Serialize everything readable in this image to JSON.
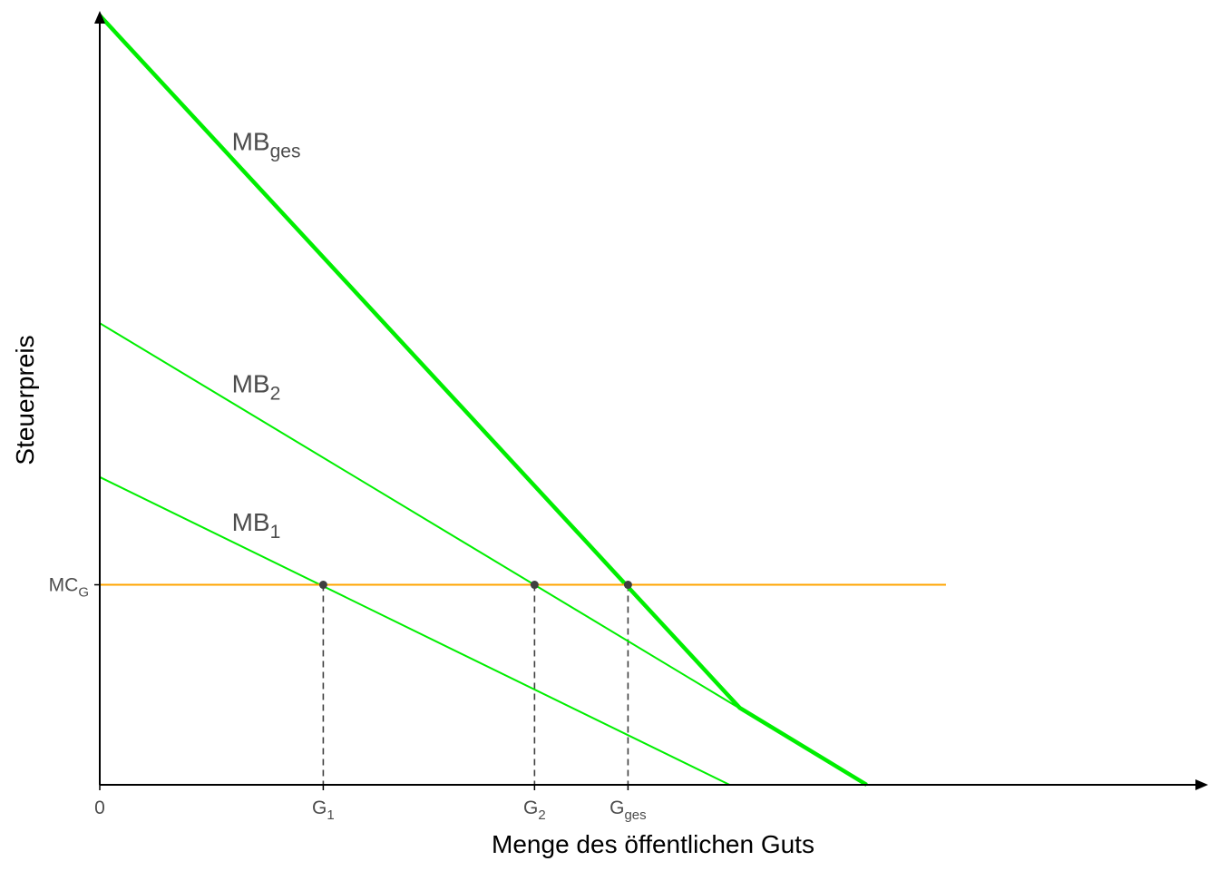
{
  "chart_data": {
    "type": "line",
    "xlabel": "Menge des öffentlichen Guts",
    "ylabel": "Steuerpreis",
    "xlim": [
      0,
      10
    ],
    "ylim": [
      0,
      10
    ],
    "colors": {
      "curves": "#00ee00",
      "cost": "#ffa500",
      "axis": "#000000",
      "points": "#404040",
      "guides": "#404040"
    },
    "x_ticks": [
      {
        "x": 0,
        "text": "0",
        "sub": ""
      },
      {
        "x": 2.2,
        "text": "G",
        "sub": "1"
      },
      {
        "x": 4.28,
        "text": "G",
        "sub": "2"
      },
      {
        "x": 5.2,
        "text": "G",
        "sub": "ges"
      }
    ],
    "y_ticks": [
      {
        "y": 2.6,
        "text": "MC",
        "sub": "G"
      }
    ],
    "series": [
      {
        "name": "MB",
        "sub": "ges",
        "points": [
          [
            0,
            10
          ],
          [
            6.3,
            1.0
          ],
          [
            7.55,
            0
          ]
        ],
        "label_at": [
          1.3,
          8.25
        ],
        "thick": true
      },
      {
        "name": "MB",
        "sub": "2",
        "points": [
          [
            0,
            6.0
          ],
          [
            7.55,
            0
          ]
        ],
        "label_at": [
          1.3,
          5.1
        ],
        "thick": false
      },
      {
        "name": "MB",
        "sub": "1",
        "points": [
          [
            0,
            4.0
          ],
          [
            6.2,
            0
          ]
        ],
        "label_at": [
          1.3,
          3.3
        ],
        "thick": false
      },
      {
        "name": "",
        "sub": "",
        "points": [
          [
            0,
            2.6
          ],
          [
            8.33,
            2.6
          ]
        ],
        "thick": false,
        "cost": true
      }
    ],
    "equilibria": [
      {
        "x": 2.2,
        "y": 2.6
      },
      {
        "x": 4.28,
        "y": 2.6
      },
      {
        "x": 5.2,
        "y": 2.6
      }
    ]
  }
}
